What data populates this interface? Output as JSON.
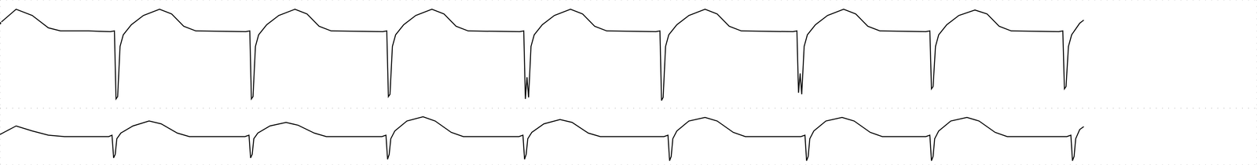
{
  "chart_data": [
    {
      "type": "line",
      "color": "#000000",
      "grid": true,
      "tick_labels": false,
      "line_style": "solid",
      "marker": "none",
      "xlim": [
        0,
        1560
      ],
      "ylim": [
        -100,
        40
      ],
      "xticks": [
        0,
        40,
        80,
        120,
        160,
        200,
        240,
        280,
        320,
        360,
        400,
        440,
        480,
        520,
        560,
        600,
        640,
        680,
        720,
        760,
        800,
        840,
        880,
        920,
        960,
        1000,
        1040,
        1080,
        1120,
        1160,
        1200,
        1240,
        1280,
        1320,
        1360,
        1400,
        1440,
        1480,
        1520,
        1560
      ],
      "yticks": [
        -100,
        -80,
        -60,
        -40,
        -20,
        0,
        20,
        40
      ],
      "x": [
        0,
        20,
        40,
        60,
        75,
        110,
        137,
        142,
        144,
        146,
        149,
        153,
        163,
        178,
        198,
        213,
        228,
        243,
        305,
        310,
        312,
        314,
        317,
        321,
        331,
        346,
        366,
        381,
        396,
        411,
        475,
        480,
        482,
        484,
        487,
        491,
        501,
        516,
        536,
        551,
        566,
        581,
        645,
        650,
        652,
        654,
        656,
        659,
        663,
        673,
        688,
        708,
        723,
        738,
        753,
        814,
        819,
        821,
        823,
        826,
        830,
        840,
        855,
        875,
        890,
        905,
        920,
        984,
        989,
        991,
        993,
        995,
        998,
        1002,
        1012,
        1027,
        1047,
        1062,
        1077,
        1092,
        1149,
        1154,
        1156,
        1158,
        1161,
        1165,
        1175,
        1190,
        1210,
        1225,
        1240,
        1255,
        1314,
        1319,
        1321,
        1323,
        1326,
        1330,
        1340,
        1345
      ],
      "values": [
        10,
        28,
        20,
        4,
        0,
        0,
        -1,
        0,
        -88,
        -85,
        -20,
        -5,
        8,
        20,
        28,
        22,
        6,
        0,
        -1,
        0,
        -88,
        -85,
        -20,
        -5,
        8,
        20,
        28,
        22,
        6,
        0,
        -1,
        0,
        -85,
        -82,
        -20,
        -5,
        8,
        20,
        28,
        22,
        6,
        0,
        -1,
        0,
        -88,
        -60,
        -86,
        -20,
        -5,
        8,
        20,
        28,
        22,
        6,
        0,
        -1,
        0,
        -90,
        -86,
        -20,
        -5,
        8,
        20,
        28,
        22,
        6,
        0,
        -1,
        0,
        -80,
        -55,
        -82,
        -20,
        -5,
        8,
        20,
        28,
        22,
        6,
        0,
        -1,
        0,
        -75,
        -72,
        -20,
        -5,
        8,
        20,
        27,
        22,
        6,
        0,
        -1,
        0,
        -75,
        -72,
        -20,
        -5,
        10,
        14
      ]
    },
    {
      "type": "line",
      "color": "#000000",
      "grid": true,
      "tick_labels": false,
      "line_style": "solid",
      "marker": "none",
      "xlim": [
        0,
        1560
      ],
      "ylim": [
        -40,
        40
      ],
      "xticks": [
        0,
        40,
        80,
        120,
        160,
        200,
        240,
        280,
        320,
        360,
        400,
        440,
        480,
        520,
        560,
        600,
        640,
        680,
        720,
        760,
        800,
        840,
        880,
        920,
        960,
        1000,
        1040,
        1080,
        1120,
        1160,
        1200,
        1240,
        1280,
        1320,
        1360,
        1400,
        1440,
        1480,
        1520,
        1560
      ],
      "yticks": [
        -40,
        -20,
        0,
        20,
        40
      ],
      "x": [
        0,
        20,
        40,
        60,
        80,
        135,
        139,
        141,
        143,
        145,
        150,
        165,
        185,
        200,
        220,
        235,
        304,
        309,
        311,
        313,
        315,
        320,
        335,
        355,
        370,
        390,
        405,
        474,
        479,
        481,
        483,
        485,
        490,
        505,
        525,
        540,
        560,
        575,
        644,
        649,
        651,
        653,
        655,
        660,
        675,
        695,
        710,
        730,
        745,
        824,
        829,
        831,
        833,
        835,
        840,
        855,
        875,
        890,
        910,
        925,
        994,
        999,
        1001,
        1003,
        1005,
        1010,
        1025,
        1045,
        1060,
        1080,
        1095,
        1149,
        1154,
        1156,
        1158,
        1160,
        1165,
        1180,
        1200,
        1215,
        1235,
        1250,
        1324,
        1329,
        1331,
        1333,
        1335,
        1340,
        1345
      ],
      "values": [
        3,
        15,
        8,
        2,
        0,
        0,
        2,
        -30,
        -25,
        -3,
        5,
        15,
        22,
        18,
        5,
        0,
        0,
        2,
        -30,
        -25,
        -3,
        5,
        15,
        20,
        16,
        5,
        0,
        0,
        2,
        -32,
        -25,
        -3,
        8,
        22,
        28,
        22,
        6,
        0,
        0,
        2,
        -32,
        -25,
        -3,
        6,
        18,
        24,
        20,
        5,
        0,
        0,
        2,
        -34,
        -28,
        -3,
        8,
        22,
        27,
        22,
        6,
        0,
        0,
        2,
        -34,
        -28,
        -3,
        8,
        22,
        27,
        22,
        6,
        0,
        0,
        2,
        -34,
        -28,
        -3,
        8,
        22,
        27,
        22,
        6,
        0,
        0,
        2,
        -34,
        -28,
        -3,
        10,
        14
      ]
    }
  ]
}
